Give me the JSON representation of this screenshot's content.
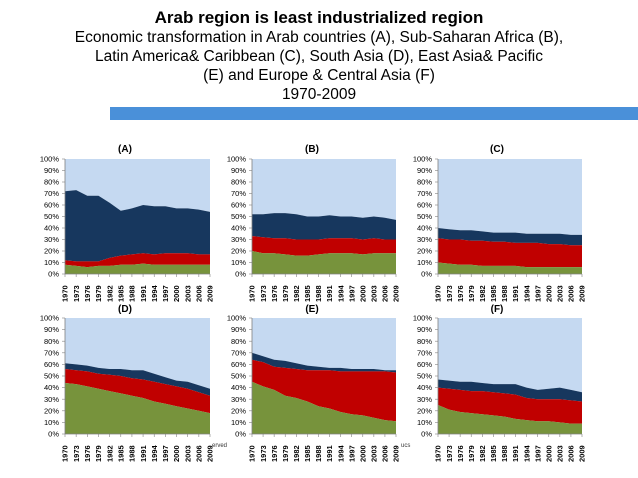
{
  "header": {
    "title": "Arab region is least industrialized region",
    "subtitle_lines": [
      "Economic transformation in Arab countries (A), Sub-Saharan Africa (B),",
      "Latin America& Caribbean (C), South Asia (D), East Asia& Pacific",
      "(E) and Europe & Central Asia (F)",
      "1970-2009"
    ]
  },
  "colors": {
    "top": "#c5d9f1",
    "dark": "#17375e",
    "red": "#c00000",
    "green": "#77933c",
    "accent_bar": "#4a90d9"
  },
  "fragments": [
    "erved",
    "ucs"
  ],
  "chart_data": [
    {
      "type": "area",
      "label": "(A)",
      "x": [
        1970,
        1973,
        1976,
        1979,
        1982,
        1985,
        1988,
        1991,
        1994,
        1997,
        2000,
        2003,
        2006,
        2009
      ],
      "x_ticks": [
        "1970",
        "1973",
        "1976",
        "1979",
        "1982",
        "1985",
        "1988",
        "1991",
        "1994",
        "1997",
        "2000",
        "2003",
        "2006",
        "2009"
      ],
      "ylim": [
        0,
        100
      ],
      "y_ticks": [
        "0%",
        "10%",
        "20%",
        "30%",
        "40%",
        "50%",
        "60%",
        "70%",
        "80%",
        "90%",
        "100%"
      ],
      "bounds": {
        "green": [
          8,
          7,
          6,
          7,
          7,
          8,
          8,
          9,
          8,
          8,
          8,
          8,
          8,
          8
        ],
        "red": [
          12,
          11,
          11,
          11,
          14,
          16,
          17,
          18,
          17,
          18,
          18,
          18,
          17,
          17
        ],
        "dark": [
          72,
          73,
          68,
          68,
          62,
          55,
          57,
          60,
          59,
          59,
          57,
          57,
          56,
          54
        ]
      }
    },
    {
      "type": "area",
      "label": "(B)",
      "x": [
        1970,
        1973,
        1976,
        1979,
        1982,
        1985,
        1988,
        1991,
        1994,
        1997,
        2000,
        2003,
        2006,
        2009
      ],
      "x_ticks": [
        "1970",
        "1973",
        "1976",
        "1979",
        "1982",
        "1985",
        "1988",
        "1991",
        "1994",
        "1997",
        "2000",
        "2003",
        "2006",
        "2009"
      ],
      "ylim": [
        0,
        100
      ],
      "y_ticks": [
        "0%",
        "10%",
        "20%",
        "30%",
        "40%",
        "50%",
        "60%",
        "70%",
        "80%",
        "90%",
        "100%"
      ],
      "bounds": {
        "green": [
          20,
          18,
          18,
          17,
          16,
          16,
          17,
          18,
          18,
          18,
          17,
          18,
          18,
          18
        ],
        "red": [
          33,
          32,
          31,
          31,
          30,
          30,
          30,
          31,
          31,
          31,
          30,
          31,
          30,
          30
        ],
        "dark": [
          52,
          52,
          53,
          53,
          52,
          50,
          50,
          51,
          50,
          50,
          49,
          50,
          49,
          47
        ]
      }
    },
    {
      "type": "area",
      "label": "(C)",
      "x": [
        1970,
        1973,
        1976,
        1979,
        1982,
        1985,
        1988,
        1991,
        1994,
        1997,
        2000,
        2003,
        2006,
        2009
      ],
      "x_ticks": [
        "1970",
        "1973",
        "1976",
        "1979",
        "1982",
        "1985",
        "1988",
        "1991",
        "1994",
        "1997",
        "2000",
        "2003",
        "2006",
        "2009"
      ],
      "ylim": [
        0,
        100
      ],
      "y_ticks": [
        "0%",
        "10%",
        "20%",
        "30%",
        "40%",
        "50%",
        "60%",
        "70%",
        "80%",
        "90%",
        "100%"
      ],
      "bounds": {
        "green": [
          10,
          9,
          8,
          8,
          7,
          7,
          7,
          7,
          6,
          6,
          6,
          6,
          6,
          6
        ],
        "red": [
          31,
          30,
          30,
          29,
          29,
          28,
          28,
          27,
          27,
          27,
          26,
          26,
          25,
          25
        ],
        "dark": [
          40,
          39,
          38,
          38,
          37,
          36,
          36,
          36,
          35,
          35,
          35,
          35,
          34,
          34
        ]
      }
    },
    {
      "type": "area",
      "label": "(D)",
      "x": [
        1970,
        1973,
        1976,
        1979,
        1982,
        1985,
        1988,
        1991,
        1994,
        1997,
        2000,
        2003,
        2006,
        2009
      ],
      "x_ticks": [
        "1970",
        "1973",
        "1976",
        "1979",
        "1982",
        "1985",
        "1988",
        "1991",
        "1994",
        "1997",
        "2000",
        "2003",
        "2006",
        "2009"
      ],
      "ylim": [
        0,
        100
      ],
      "y_ticks": [
        "0%",
        "10%",
        "20%",
        "30%",
        "40%",
        "50%",
        "60%",
        "70%",
        "80%",
        "90%",
        "100%"
      ],
      "bounds": {
        "green": [
          44,
          43,
          41,
          39,
          37,
          35,
          33,
          31,
          28,
          26,
          24,
          22,
          20,
          18
        ],
        "red": [
          56,
          55,
          54,
          52,
          51,
          50,
          48,
          47,
          45,
          43,
          41,
          39,
          36,
          33
        ],
        "dark": [
          61,
          60,
          59,
          57,
          56,
          56,
          55,
          55,
          52,
          49,
          46,
          45,
          42,
          39
        ]
      }
    },
    {
      "type": "area",
      "label": "(E)",
      "x": [
        1970,
        1973,
        1976,
        1979,
        1982,
        1985,
        1988,
        1991,
        1994,
        1997,
        2000,
        2003,
        2006,
        2009
      ],
      "x_ticks": [
        "1970",
        "1973",
        "1976",
        "1979",
        "1982",
        "1985",
        "1988",
        "1991",
        "1994",
        "1997",
        "2000",
        "2003",
        "2006",
        "2009"
      ],
      "ylim": [
        0,
        100
      ],
      "y_ticks": [
        "0%",
        "10%",
        "20%",
        "30%",
        "40%",
        "50%",
        "60%",
        "70%",
        "80%",
        "90%",
        "100%"
      ],
      "bounds": {
        "green": [
          45,
          41,
          38,
          33,
          31,
          28,
          24,
          22,
          19,
          17,
          16,
          14,
          12,
          11
        ],
        "red": [
          64,
          62,
          58,
          57,
          56,
          55,
          55,
          55,
          54,
          54,
          54,
          54,
          54,
          53
        ],
        "dark": [
          70,
          67,
          64,
          63,
          61,
          59,
          58,
          57,
          57,
          56,
          56,
          56,
          55,
          55
        ]
      }
    },
    {
      "type": "area",
      "label": "(F)",
      "x": [
        1970,
        1973,
        1976,
        1979,
        1982,
        1985,
        1988,
        1991,
        1994,
        1997,
        2000,
        2003,
        2006,
        2009
      ],
      "x_ticks": [
        "1970",
        "1973",
        "1976",
        "1979",
        "1982",
        "1985",
        "1988",
        "1991",
        "1994",
        "1997",
        "2000",
        "2003",
        "2006",
        "2009"
      ],
      "ylim": [
        0,
        100
      ],
      "y_ticks": [
        "0%",
        "10%",
        "20%",
        "30%",
        "40%",
        "50%",
        "60%",
        "70%",
        "80%",
        "90%",
        "100%"
      ],
      "bounds": {
        "green": [
          25,
          21,
          19,
          18,
          17,
          16,
          15,
          13,
          12,
          11,
          11,
          10,
          9,
          9
        ],
        "red": [
          40,
          39,
          38,
          37,
          37,
          36,
          35,
          34,
          31,
          30,
          30,
          30,
          29,
          28
        ],
        "dark": [
          47,
          46,
          45,
          45,
          44,
          43,
          43,
          43,
          40,
          38,
          39,
          40,
          38,
          36
        ]
      }
    }
  ]
}
